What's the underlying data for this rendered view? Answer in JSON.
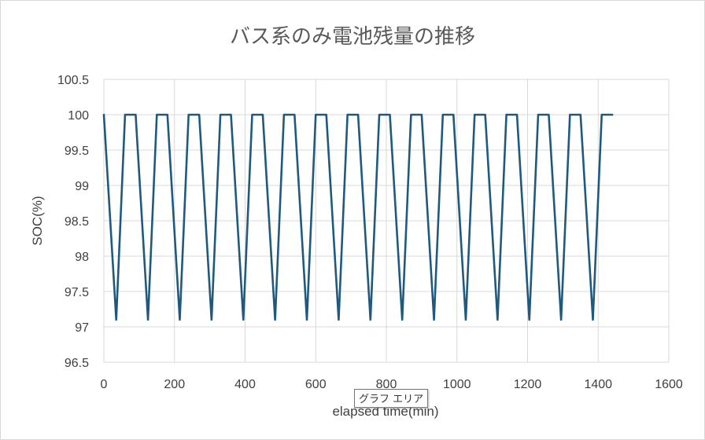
{
  "chart_data": {
    "type": "line",
    "title": "バス系のみ電池残量の推移",
    "xlabel": "elapsed time(min)",
    "ylabel": "SOC(%)",
    "xlim": [
      0,
      1600
    ],
    "ylim": [
      96.5,
      100.5
    ],
    "x_ticks": [
      0,
      200,
      400,
      600,
      800,
      1000,
      1200,
      1400,
      1600
    ],
    "y_ticks": [
      96.5,
      97,
      97.5,
      98,
      98.5,
      99,
      99.5,
      100,
      100.5
    ],
    "x_tick_labels": [
      "0",
      "200",
      "400",
      "600",
      "800",
      "1000",
      "1200",
      "1400",
      "1600"
    ],
    "y_tick_labels": [
      "96.5",
      "97",
      "97.5",
      "98",
      "98.5",
      "99",
      "99.5",
      "100",
      "100.5"
    ],
    "grid": true,
    "legend": "none",
    "series": [
      {
        "color": "#1f5a7e",
        "points": [
          [
            0,
            100
          ],
          [
            35,
            97.1
          ],
          [
            60,
            100
          ],
          [
            90,
            100
          ],
          [
            125,
            97.1
          ],
          [
            150,
            100
          ],
          [
            180,
            100
          ],
          [
            215,
            97.1
          ],
          [
            240,
            100
          ],
          [
            270,
            100
          ],
          [
            305,
            97.1
          ],
          [
            330,
            100
          ],
          [
            360,
            100
          ],
          [
            395,
            97.1
          ],
          [
            420,
            100
          ],
          [
            450,
            100
          ],
          [
            485,
            97.1
          ],
          [
            510,
            100
          ],
          [
            540,
            100
          ],
          [
            575,
            97.1
          ],
          [
            600,
            100
          ],
          [
            630,
            100
          ],
          [
            665,
            97.1
          ],
          [
            690,
            100
          ],
          [
            720,
            100
          ],
          [
            755,
            97.1
          ],
          [
            780,
            100
          ],
          [
            810,
            100
          ],
          [
            845,
            97.1
          ],
          [
            870,
            100
          ],
          [
            900,
            100
          ],
          [
            935,
            97.1
          ],
          [
            960,
            100
          ],
          [
            990,
            100
          ],
          [
            1025,
            97.1
          ],
          [
            1050,
            100
          ],
          [
            1080,
            100
          ],
          [
            1115,
            97.1
          ],
          [
            1140,
            100
          ],
          [
            1170,
            100
          ],
          [
            1205,
            97.1
          ],
          [
            1230,
            100
          ],
          [
            1260,
            100
          ],
          [
            1295,
            97.1
          ],
          [
            1320,
            100
          ],
          [
            1350,
            100
          ],
          [
            1385,
            97.1
          ],
          [
            1410,
            100
          ],
          [
            1440,
            100
          ]
        ]
      }
    ]
  },
  "tooltip": {
    "text": "グラフ エリア"
  }
}
